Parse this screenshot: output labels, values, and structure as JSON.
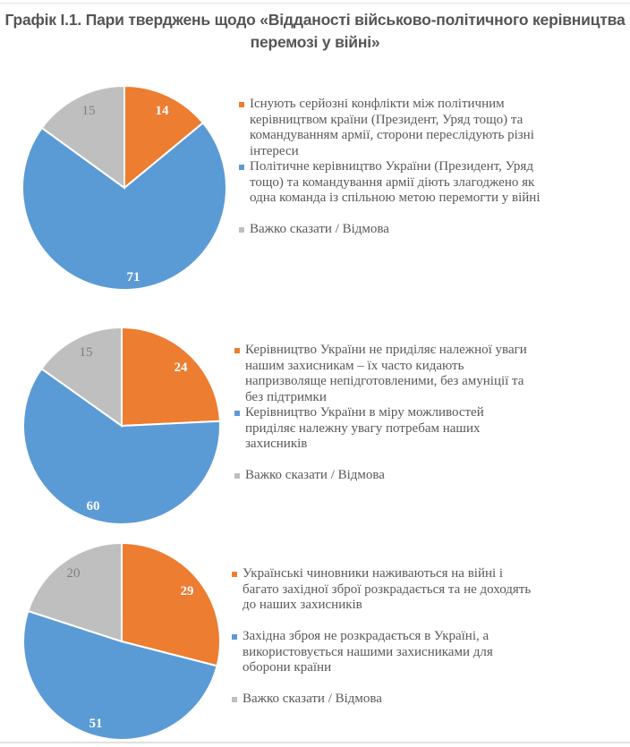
{
  "title": "Графік І.1. Пари тверджень щодо «Відданості військово-політичного керівництва перемозі у війні»",
  "title_lines": [
    "Графік І.1. Пари тверджень щодо «Відданості військово-політичного керівництва",
    "перемозі у війні»"
  ],
  "colors": {
    "orange": "#ED7D31",
    "blue": "#5B9BD5",
    "gray": "#BFBFBF",
    "gray_label": "#7F7F7F",
    "white_label": "#FFFFFF"
  },
  "chart_data": [
    {
      "type": "pie",
      "title": "",
      "categories": [
        "Існують серйозні конфлікти між політичним керівництвом країни (Президент, Уряд тощо) та командуванням армії, сторони переслідують різні інтереси",
        "Політичне керівництво України (Президент, Уряд тощо) та командування армії діють злагоджено як одна команда із спільною метою перемогти у війні",
        "Важко сказати / Відмова"
      ],
      "values": [
        14,
        71,
        15
      ],
      "colors": [
        "#ED7D31",
        "#5B9BD5",
        "#BFBFBF"
      ],
      "legend_position": "right"
    },
    {
      "type": "pie",
      "title": "",
      "categories": [
        "Керівництво України не приділяє належної уваги нашим захисникам – їх часто кидають напризволяще непідготовленими, без амуніції та без підтримки",
        "Керівництво України в міру можливостей приділяє належну увагу потребам наших захисників",
        "Важко сказати / Відмова"
      ],
      "values": [
        24,
        60,
        15
      ],
      "colors": [
        "#ED7D31",
        "#5B9BD5",
        "#BFBFBF"
      ],
      "legend_position": "right"
    },
    {
      "type": "pie",
      "title": "",
      "categories": [
        "Українські чиновники наживаються на війні і багато західної зброї розкрадається та не доходять до наших захисників",
        "Західна зброя не розкрадається в Україні, а використовується нашими захисниками для оборони країни",
        "Важко сказати / Відмова"
      ],
      "values": [
        29,
        51,
        20
      ],
      "colors": [
        "#ED7D31",
        "#5B9BD5",
        "#BFBFBF"
      ],
      "legend_position": "right"
    }
  ],
  "panels": [
    {
      "labels": [
        "14",
        "71",
        "15"
      ],
      "legend": [
        [
          "Існують серйозні конфлікти між політичним",
          "керівництвом країни (Президент, Уряд тощо) та",
          "командуванням армії, сторони переслідують різні",
          "інтереси"
        ],
        [
          "Політичне керівництво України (Президент, Уряд",
          "тощо) та командування армії діють злагоджено як",
          "одна команда із спільною метою перемогти у війні"
        ],
        [
          "Важко сказати / Відмова"
        ]
      ]
    },
    {
      "labels": [
        "24",
        "60",
        "15"
      ],
      "legend": [
        [
          "Керівництво України не приділяє належної уваги",
          "нашим захисникам – їх часто кидають",
          "напризволяще непідготовленими, без амуніції та",
          "без підтримки"
        ],
        [
          "Керівництво України в міру можливостей",
          "приділяє належну увагу потребам наших",
          "захисників"
        ],
        [
          "Важко сказати / Відмова"
        ]
      ]
    },
    {
      "labels": [
        "29",
        "51",
        "20"
      ],
      "legend": [
        [
          "Українські чиновники наживаються на війні і",
          "багато західної зброї розкрадається та не доходять",
          "до наших захисників"
        ],
        [
          "Західна зброя не розкрадається в Україні, а",
          "використовується нашими захисниками для",
          "оборони країни"
        ],
        [
          "Важко сказати / Відмова"
        ]
      ]
    }
  ]
}
